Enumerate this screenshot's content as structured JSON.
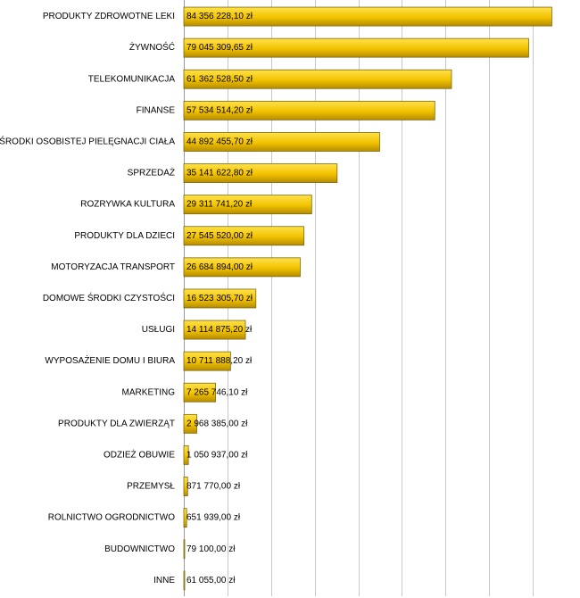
{
  "chart_data": {
    "type": "bar",
    "orientation": "horizontal",
    "categories": [
      "PRODUKTY ZDROWOTNE LEKI",
      "ŻYWNOŚĆ",
      "TELEKOMUNIKACJA",
      "FINANSE",
      "ŚRODKI OSOBISTEJ PIELĘGNACJI CIAŁA",
      "SPRZEDAŻ",
      "ROZRYWKA KULTURA",
      "PRODUKTY DLA DZIECI",
      "MOTORYZACJA TRANSPORT",
      "DOMOWE ŚRODKI CZYSTOŚCI",
      "USŁUGI",
      "WYPOSAŻENIE DOMU I BIURA",
      "MARKETING",
      "PRODUKTY DLA ZWIERZĄT",
      "ODZIEŻ OBUWIE",
      "PRZEMYSŁ",
      "ROLNICTWO OGRODNICTWO",
      "BUDOWNICTWO",
      "INNE"
    ],
    "values": [
      84356228.1,
      79045309.65,
      61362528.5,
      57534514.2,
      44892455.7,
      35141622.8,
      29311741.2,
      27545520.0,
      26684894.0,
      16523305.7,
      14114875.2,
      10711888.2,
      7265746.1,
      2968385.0,
      1050937.0,
      871770.0,
      651939.0,
      79100.0,
      61055.0
    ],
    "value_labels": [
      "84 356 228,10 zł",
      "79 045 309,65 zł",
      "61 362 528,50 zł",
      "57 534 514,20 zł",
      "44 892 455,70 zł",
      "35 141 622,80 zł",
      "29 311 741,20 zł",
      "27 545 520,00 zł",
      "26 684 894,00 zł",
      "16 523 305,70 zł",
      "14 114 875,20 zł",
      "10 711 888,20 zł",
      "7 265 746,10 zł",
      "2 968 385,00 zł",
      "1 050 937,00 zł",
      "871 770,00 zł",
      "651 939,00 zł",
      "79 100,00 zł",
      "61 055,00 zł"
    ],
    "xlim": [
      0,
      90000000
    ],
    "grid": true,
    "legend": "none",
    "colors": {
      "bar": "#f2c200",
      "bar_dark": "#b58c00",
      "grid": "#c8c8c8"
    }
  }
}
